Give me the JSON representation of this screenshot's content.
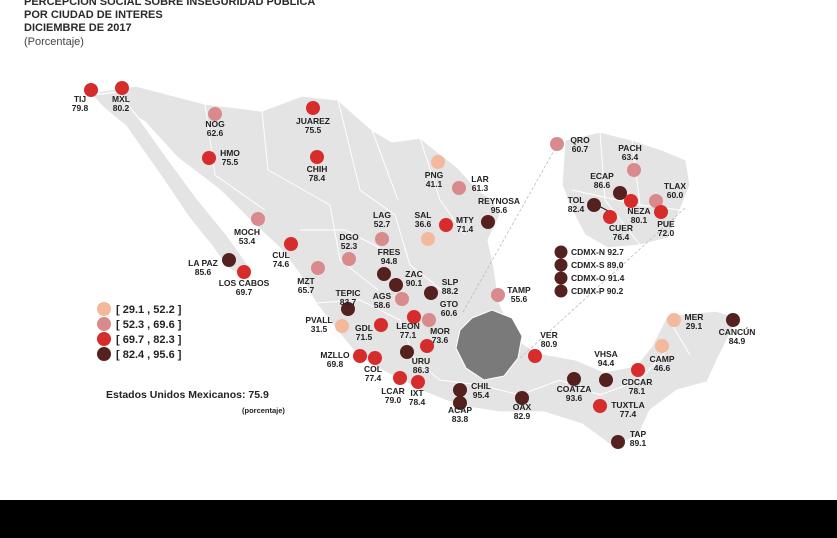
{
  "header": {
    "line1": "PERCEPCIÓN SOCIAL SOBRE INSEGURIDAD PÚBLICA",
    "line2": "POR CIUDAD DE INTERES",
    "line3": "DICIEMBRE DE 2017",
    "line4": "(Porcentaje)"
  },
  "national": {
    "label": "Estados Unidos Mexicanos: 75.9",
    "unit": "(porcentaje)"
  },
  "colors": {
    "bin1": "#f4b89c",
    "bin2": "#d98a8c",
    "bin3": "#d72c2c",
    "bin4": "#55211f",
    "land": "#e4e4e4",
    "border": "#ffffff",
    "highlight": "#7a7a7a"
  },
  "legend": [
    {
      "label": "[ 29.1 , 52.2 ]",
      "bin": 1
    },
    {
      "label": "[ 52.3 , 69.6 ]",
      "bin": 2
    },
    {
      "label": "[ 69.7 , 82.3 ]",
      "bin": 3
    },
    {
      "label": "[ 82.4 , 95.6 ]",
      "bin": 4
    }
  ],
  "cities": [
    {
      "code": "TIJ",
      "value": "79.8",
      "bin": 3
    },
    {
      "code": "MXL",
      "value": "80.2",
      "bin": 3
    },
    {
      "code": "NOG",
      "value": "62.6",
      "bin": 2
    },
    {
      "code": "JUAREZ",
      "value": "75.5",
      "bin": 3
    },
    {
      "code": "HMO",
      "value": "75.5",
      "bin": 3
    },
    {
      "code": "CHIH",
      "value": "78.4",
      "bin": 3
    },
    {
      "code": "PNG",
      "value": "41.1",
      "bin": 1
    },
    {
      "code": "LAR",
      "value": "61.3",
      "bin": 2
    },
    {
      "code": "REYNOSA",
      "value": "95.6",
      "bin": 4
    },
    {
      "code": "MOCH",
      "value": "53.4",
      "bin": 2
    },
    {
      "code": "LAG",
      "value": "52.7",
      "bin": 2
    },
    {
      "code": "SAL",
      "value": "36.6",
      "bin": 1
    },
    {
      "code": "MTY",
      "value": "71.4",
      "bin": 3
    },
    {
      "code": "DGO",
      "value": "52.3",
      "bin": 2
    },
    {
      "code": "LA PAZ",
      "value": "85.6",
      "bin": 4
    },
    {
      "code": "CUL",
      "value": "74.6",
      "bin": 3
    },
    {
      "code": "LOS CABOS",
      "value": "69.7",
      "bin": 3
    },
    {
      "code": "FRES",
      "value": "94.8",
      "bin": 4
    },
    {
      "code": "ZAC",
      "value": "90.1",
      "bin": 4
    },
    {
      "code": "MZT",
      "value": "65.7",
      "bin": 2
    },
    {
      "code": "TEPIC",
      "value": "83.7",
      "bin": 4
    },
    {
      "code": "SLP",
      "value": "88.2",
      "bin": 4
    },
    {
      "code": "AGS",
      "value": "58.6",
      "bin": 2
    },
    {
      "code": "TAMP",
      "value": "55.6",
      "bin": 2
    },
    {
      "code": "GTO",
      "value": "60.6",
      "bin": 2
    },
    {
      "code": "PVALL",
      "value": "31.5",
      "bin": 1
    },
    {
      "code": "GDL",
      "value": "71.5",
      "bin": 3
    },
    {
      "code": "LEON",
      "value": "77.1",
      "bin": 3
    },
    {
      "code": "MOR",
      "value": "73.6",
      "bin": 3
    },
    {
      "code": "MZLLO",
      "value": "69.8",
      "bin": 3
    },
    {
      "code": "COL",
      "value": "77.4",
      "bin": 3
    },
    {
      "code": "URU",
      "value": "86.3",
      "bin": 4
    },
    {
      "code": "LCAR",
      "value": "79.0",
      "bin": 3
    },
    {
      "code": "IXT",
      "value": "78.4",
      "bin": 3
    },
    {
      "code": "CHIL",
      "value": "95.4",
      "bin": 4
    },
    {
      "code": "ACAP",
      "value": "83.8",
      "bin": 4
    },
    {
      "code": "OAX",
      "value": "82.9",
      "bin": 4
    },
    {
      "code": "VER",
      "value": "80.9",
      "bin": 3
    },
    {
      "code": "COATZA",
      "value": "93.6",
      "bin": 4
    },
    {
      "code": "VHSA",
      "value": "94.4",
      "bin": 4
    },
    {
      "code": "CDCAR",
      "value": "78.1",
      "bin": 3
    },
    {
      "code": "TUXTLA",
      "value": "77.4",
      "bin": 3
    },
    {
      "code": "TAP",
      "value": "89.1",
      "bin": 4
    },
    {
      "code": "CAMP",
      "value": "46.6",
      "bin": 1
    },
    {
      "code": "MER",
      "value": "29.1",
      "bin": 1
    },
    {
      "code": "CANCÚN",
      "value": "84.9",
      "bin": 4
    },
    {
      "code": "QRO",
      "value": "60.7",
      "bin": 2
    },
    {
      "code": "PACH",
      "value": "63.4",
      "bin": 2
    },
    {
      "code": "ECAP",
      "value": "86.6",
      "bin": 4
    },
    {
      "code": "TLAX",
      "value": "60.0",
      "bin": 2
    },
    {
      "code": "TOL",
      "value": "82.4",
      "bin": 4
    },
    {
      "code": "NEZA",
      "value": "80.1",
      "bin": 3
    },
    {
      "code": "CUER",
      "value": "76.4",
      "bin": 3
    },
    {
      "code": "PUE",
      "value": "72.0",
      "bin": 3
    }
  ],
  "cdmx_list": [
    {
      "label": "CDMX-N 92.7",
      "bin": 4
    },
    {
      "label": "CDMX-S 89.0",
      "bin": 4
    },
    {
      "label": "CDMX-O 91.4",
      "bin": 4
    },
    {
      "label": "CDMX-P 90.2",
      "bin": 4
    }
  ]
}
